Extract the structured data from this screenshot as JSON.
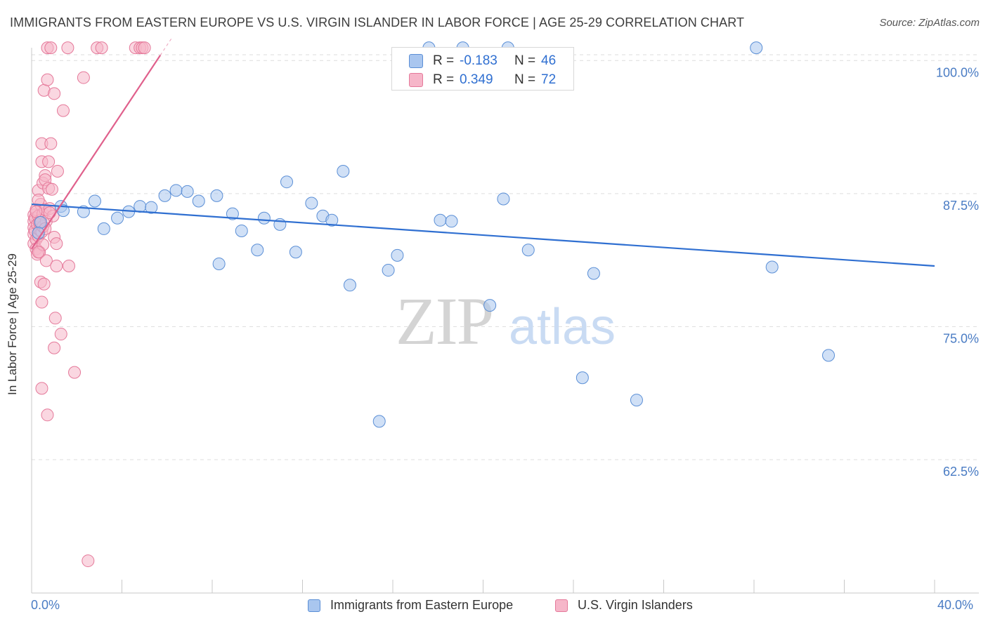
{
  "title": "IMMIGRANTS FROM EASTERN EUROPE VS U.S. VIRGIN ISLANDER IN LABOR FORCE | AGE 25-29 CORRELATION CHART",
  "source": "Source: ZipAtlas.com",
  "watermark": {
    "zip": "ZIP",
    "atlas": "atlas"
  },
  "colors": {
    "blue_fill": "#a9c6ef",
    "blue_stroke": "#5b8fd6",
    "blue_line": "#2f6fd1",
    "pink_fill": "#f6b6c9",
    "pink_stroke": "#e5799a",
    "pink_line": "#e0608c",
    "axis_text": "#4a7cc4",
    "grid": "#dddddd"
  },
  "stats": {
    "rows": [
      {
        "r_label": "R =",
        "r_value": "-0.183",
        "n_label": "N =",
        "n_value": "46"
      },
      {
        "r_label": "R =",
        "r_value": "0.349",
        "n_label": "N =",
        "n_value": "72"
      }
    ]
  },
  "legend": {
    "series1": "Immigrants from Eastern Europe",
    "series2": "U.S. Virgin Islanders"
  },
  "chart_data": {
    "type": "scatter",
    "title": "IMMIGRANTS FROM EASTERN EUROPE VS U.S. VIRGIN ISLANDER IN LABOR FORCE | AGE 25-29 CORRELATION CHART",
    "xlabel": "",
    "ylabel": "In Labor Force | Age 25-29",
    "xlim": [
      0,
      40
    ],
    "ylim": [
      51.5,
      102.5
    ],
    "x_tick_labels": [
      "0.0%",
      "40.0%"
    ],
    "y_ticks": [
      62.5,
      75.0,
      87.5,
      100.0
    ],
    "y_tick_labels": [
      "62.5%",
      "75.0%",
      "87.5%",
      "100.0%"
    ],
    "grid": true,
    "series": [
      {
        "name": "Immigrants from Eastern Europe",
        "color": "#a9c6ef",
        "points": [
          [
            1.3,
            86.3
          ],
          [
            1.4,
            85.9
          ],
          [
            2.3,
            85.8
          ],
          [
            2.8,
            86.8
          ],
          [
            3.2,
            84.2
          ],
          [
            3.8,
            85.2
          ],
          [
            4.3,
            85.8
          ],
          [
            4.8,
            86.3
          ],
          [
            5.3,
            86.2
          ],
          [
            5.9,
            87.3
          ],
          [
            6.4,
            87.8
          ],
          [
            6.9,
            87.7
          ],
          [
            7.4,
            86.8
          ],
          [
            8.2,
            87.3
          ],
          [
            8.3,
            80.9
          ],
          [
            8.9,
            85.6
          ],
          [
            9.3,
            84.0
          ],
          [
            10.0,
            82.2
          ],
          [
            10.3,
            85.2
          ],
          [
            11.0,
            84.6
          ],
          [
            11.3,
            88.6
          ],
          [
            11.7,
            82.0
          ],
          [
            12.4,
            86.6
          ],
          [
            12.9,
            85.4
          ],
          [
            13.3,
            85.0
          ],
          [
            13.8,
            89.6
          ],
          [
            14.1,
            78.9
          ],
          [
            15.4,
            66.1
          ],
          [
            15.8,
            80.3
          ],
          [
            16.2,
            81.7
          ],
          [
            18.1,
            85.0
          ],
          [
            18.6,
            84.9
          ],
          [
            19.1,
            101.2
          ],
          [
            20.3,
            77.0
          ],
          [
            20.9,
            87.0
          ],
          [
            21.1,
            101.2
          ],
          [
            22.0,
            82.2
          ],
          [
            24.4,
            70.2
          ],
          [
            24.9,
            80.0
          ],
          [
            26.8,
            68.1
          ],
          [
            32.1,
            101.2
          ],
          [
            32.8,
            80.6
          ],
          [
            35.3,
            72.3
          ],
          [
            17.6,
            101.2
          ],
          [
            0.4,
            84.8
          ],
          [
            0.3,
            83.8
          ]
        ],
        "trendline": {
          "x": [
            0,
            40
          ],
          "y": [
            86.5,
            80.7
          ]
        }
      },
      {
        "name": "U.S. Virgin Islanders",
        "color": "#f6b6c9",
        "points": [
          [
            0.1,
            85.5
          ],
          [
            0.1,
            84.9
          ],
          [
            0.1,
            84.3
          ],
          [
            0.1,
            83.7
          ],
          [
            0.1,
            82.8
          ],
          [
            0.15,
            85.2
          ],
          [
            0.15,
            84.0
          ],
          [
            0.2,
            86.0
          ],
          [
            0.2,
            83.2
          ],
          [
            0.2,
            82.3
          ],
          [
            0.25,
            84.6
          ],
          [
            0.25,
            81.8
          ],
          [
            0.3,
            87.8
          ],
          [
            0.3,
            85.4
          ],
          [
            0.3,
            83.5
          ],
          [
            0.35,
            84.1
          ],
          [
            0.35,
            82.0
          ],
          [
            0.4,
            86.5
          ],
          [
            0.4,
            85.0
          ],
          [
            0.4,
            79.2
          ],
          [
            0.45,
            83.9
          ],
          [
            0.45,
            92.2
          ],
          [
            0.45,
            90.5
          ],
          [
            0.5,
            88.5
          ],
          [
            0.5,
            85.6
          ],
          [
            0.5,
            84.4
          ],
          [
            0.5,
            82.7
          ],
          [
            0.55,
            97.2
          ],
          [
            0.55,
            79.0
          ],
          [
            0.6,
            89.2
          ],
          [
            0.6,
            86.0
          ],
          [
            0.6,
            88.8
          ],
          [
            0.65,
            84.9
          ],
          [
            0.65,
            81.2
          ],
          [
            0.7,
            101.2
          ],
          [
            0.7,
            98.2
          ],
          [
            0.75,
            90.5
          ],
          [
            0.75,
            88.0
          ],
          [
            0.8,
            86.1
          ],
          [
            0.85,
            101.2
          ],
          [
            0.85,
            92.2
          ],
          [
            0.9,
            87.9
          ],
          [
            0.95,
            85.4
          ],
          [
            1.0,
            96.9
          ],
          [
            1.0,
            83.4
          ],
          [
            1.05,
            75.8
          ],
          [
            1.1,
            82.8
          ],
          [
            1.1,
            80.7
          ],
          [
            1.15,
            89.6
          ],
          [
            1.3,
            74.3
          ],
          [
            1.4,
            95.3
          ],
          [
            1.6,
            101.2
          ],
          [
            1.65,
            80.7
          ],
          [
            1.0,
            73.0
          ],
          [
            1.9,
            70.7
          ],
          [
            2.3,
            98.4
          ],
          [
            2.5,
            53.0
          ],
          [
            2.9,
            101.2
          ],
          [
            3.1,
            101.2
          ],
          [
            4.6,
            101.2
          ],
          [
            4.8,
            101.2
          ],
          [
            4.9,
            101.2
          ],
          [
            5.0,
            101.2
          ],
          [
            0.45,
            77.3
          ],
          [
            0.45,
            69.2
          ],
          [
            0.7,
            66.7
          ],
          [
            0.3,
            82.0
          ],
          [
            0.3,
            86.9
          ],
          [
            0.2,
            85.8
          ],
          [
            0.35,
            84.8
          ],
          [
            0.6,
            84.2
          ],
          [
            0.8,
            85.7
          ]
        ],
        "trendline": {
          "x": [
            0,
            5.7
          ],
          "y": [
            82.3,
            100.5
          ]
        }
      }
    ]
  }
}
